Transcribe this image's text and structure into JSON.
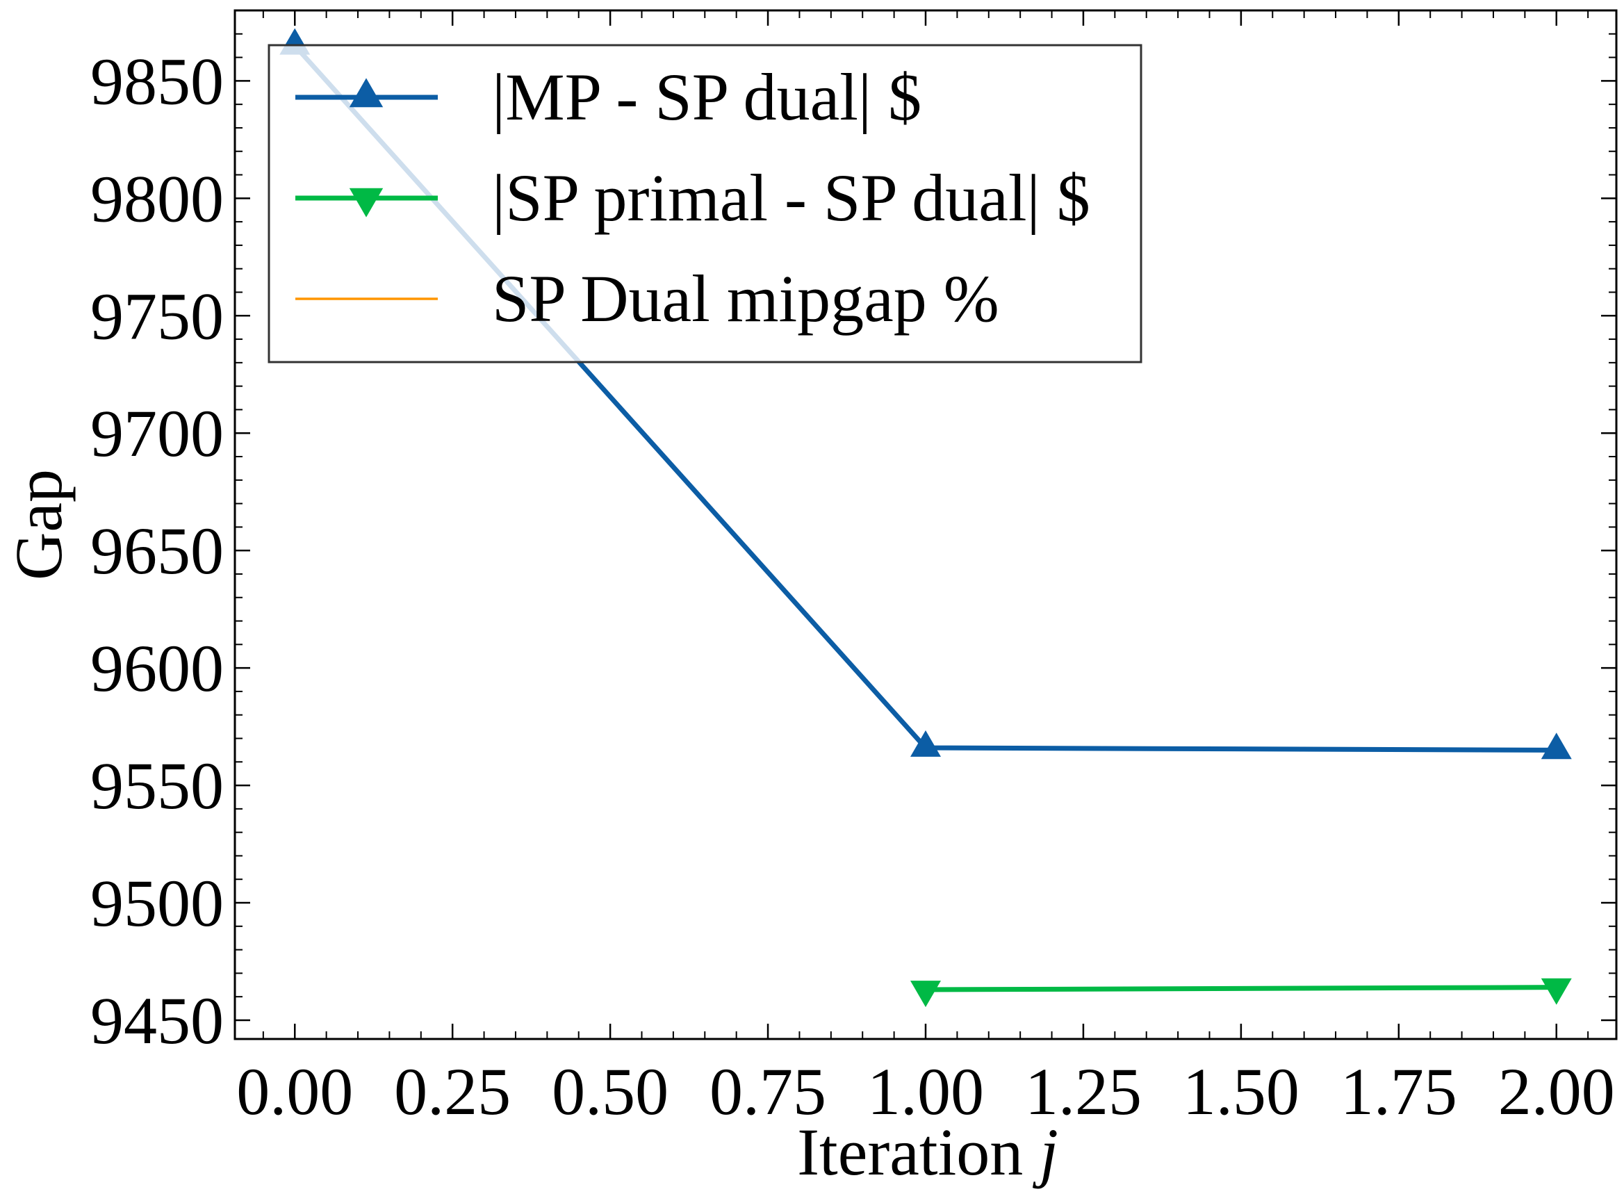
{
  "chart_data": {
    "type": "line",
    "xlabel": "Iteration",
    "xlabel_var": "j",
    "ylabel": "Gap",
    "xlim": [
      -0.095,
      2.095
    ],
    "ylim": [
      9442,
      9880
    ],
    "xticks": [
      0.0,
      0.25,
      0.5,
      0.75,
      1.0,
      1.25,
      1.5,
      1.75,
      2.0
    ],
    "xtick_labels": [
      "0.00",
      "0.25",
      "0.50",
      "0.75",
      "1.00",
      "1.25",
      "1.50",
      "1.75",
      "2.00"
    ],
    "yticks": [
      9450,
      9500,
      9550,
      9600,
      9650,
      9700,
      9750,
      9800,
      9850
    ],
    "ytick_labels": [
      "9450",
      "9500",
      "9550",
      "9600",
      "9650",
      "9700",
      "9750",
      "9800",
      "9850"
    ],
    "grid": false,
    "legend_position": "top-left",
    "series": [
      {
        "name": "|MP - SP dual| $",
        "color": "#0c5da5",
        "marker": "triangle-up",
        "x": [
          0,
          1,
          2
        ],
        "y": [
          9865,
          9566,
          9565
        ]
      },
      {
        "name": "|SP primal - SP dual| $",
        "color": "#00b945",
        "marker": "triangle-down",
        "x": [
          1,
          2
        ],
        "y": [
          9463,
          9464
        ]
      },
      {
        "name": "SP Dual mipgap %",
        "color": "#ff9500",
        "marker": "none",
        "x": [],
        "y": []
      }
    ]
  }
}
